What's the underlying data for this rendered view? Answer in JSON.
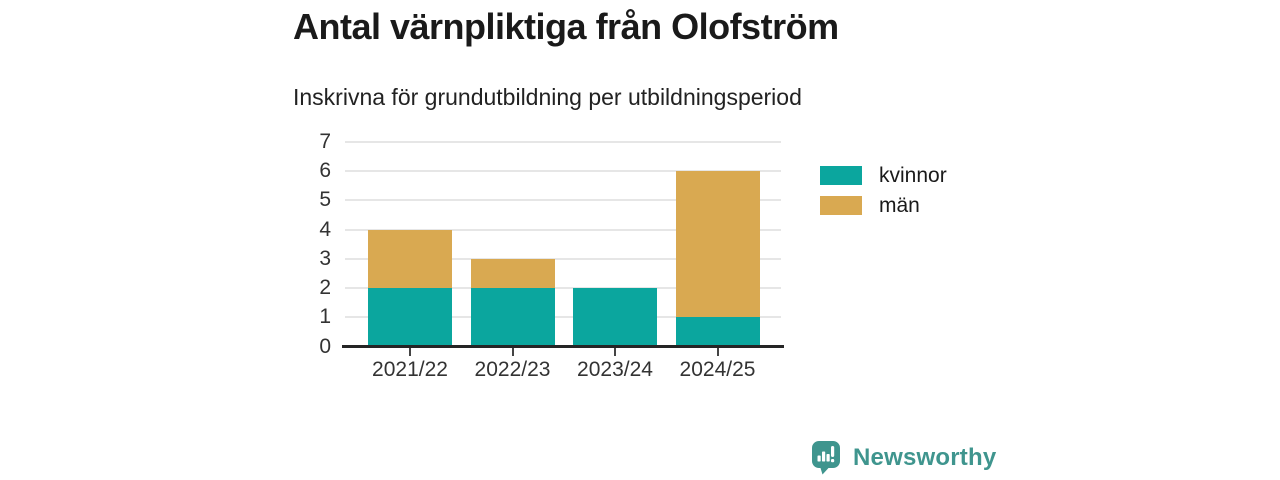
{
  "header": {
    "title": "Antal värnpliktiga från Olofström",
    "subtitle": "Inskrivna för grundutbildning per utbildningsperiod"
  },
  "chart_data": {
    "type": "bar",
    "stacked": true,
    "title": "Antal värnpliktiga från Olofström",
    "subtitle": "Inskrivna för grundutbildning per utbildningsperiod",
    "categories": [
      "2021/22",
      "2022/23",
      "2023/24",
      "2024/25"
    ],
    "series": [
      {
        "name": "kvinnor",
        "color": "#0ba69e",
        "values": [
          2,
          2,
          2,
          1
        ]
      },
      {
        "name": "män",
        "color": "#d9a951",
        "values": [
          2,
          1,
          0,
          5
        ]
      }
    ],
    "stack_totals": [
      4,
      3,
      2,
      6
    ],
    "xlabel": "",
    "ylabel": "",
    "ylim": [
      0,
      7
    ],
    "yticks": [
      0,
      1,
      2,
      3,
      4,
      5,
      6,
      7
    ],
    "grid": true,
    "legend_position": "right"
  },
  "footer": {
    "brand": "Newsworthy",
    "brand_color": "#3f958e",
    "logo_icon": "bar-chart-speech-bubble-icon"
  },
  "colors": {
    "series_kvinnor": "#0ba69e",
    "series_man": "#d9a951",
    "title_text": "#1a1a1a",
    "axis_text": "#333333",
    "gridline": "#e6e6e6",
    "axis_line": "#252525",
    "background": "#ffffff"
  }
}
